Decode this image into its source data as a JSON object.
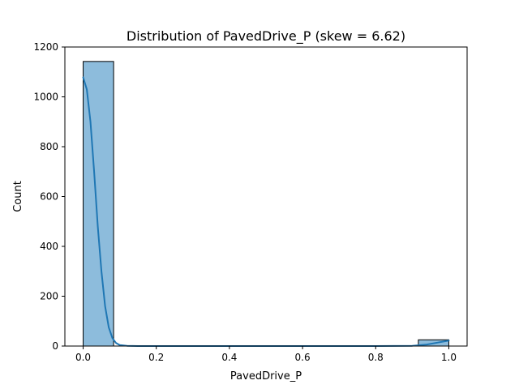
{
  "chart_data": {
    "type": "bar",
    "title": "Distribution of PavedDrive_P (skew = 6.62)",
    "xlabel": "PavedDrive_P",
    "ylabel": "Count",
    "xlim": [
      -0.05,
      1.05
    ],
    "ylim": [
      0,
      1200
    ],
    "xticks": [
      "0.0",
      "0.2",
      "0.4",
      "0.6",
      "0.8",
      "1.0"
    ],
    "xtick_values": [
      0.0,
      0.2,
      0.4,
      0.6,
      0.8,
      1.0
    ],
    "yticks": [
      "0",
      "200",
      "400",
      "600",
      "800",
      "1000",
      "1200"
    ],
    "ytick_values": [
      0,
      200,
      400,
      600,
      800,
      1000,
      1200
    ],
    "bins": [
      {
        "x0": 0.0,
        "x1": 0.0833,
        "count": 1142
      },
      {
        "x0": 0.9167,
        "x1": 1.0,
        "count": 25
      }
    ],
    "kde": {
      "x": [
        0.0,
        0.01,
        0.02,
        0.03,
        0.04,
        0.05,
        0.06,
        0.07,
        0.08,
        0.09,
        0.1,
        0.12,
        0.15,
        0.2,
        0.4,
        0.6,
        0.8,
        0.9,
        0.94,
        0.97,
        1.0
      ],
      "y": [
        1078,
        1030,
        900,
        700,
        480,
        300,
        160,
        75,
        32,
        12,
        4,
        1,
        0,
        0,
        0,
        0,
        0,
        1,
        6,
        14,
        22
      ]
    },
    "colors": {
      "bar_fill": "#8dbcdc",
      "bar_edge": "#000000",
      "kde_line": "#1f77b4"
    },
    "grid": false
  }
}
